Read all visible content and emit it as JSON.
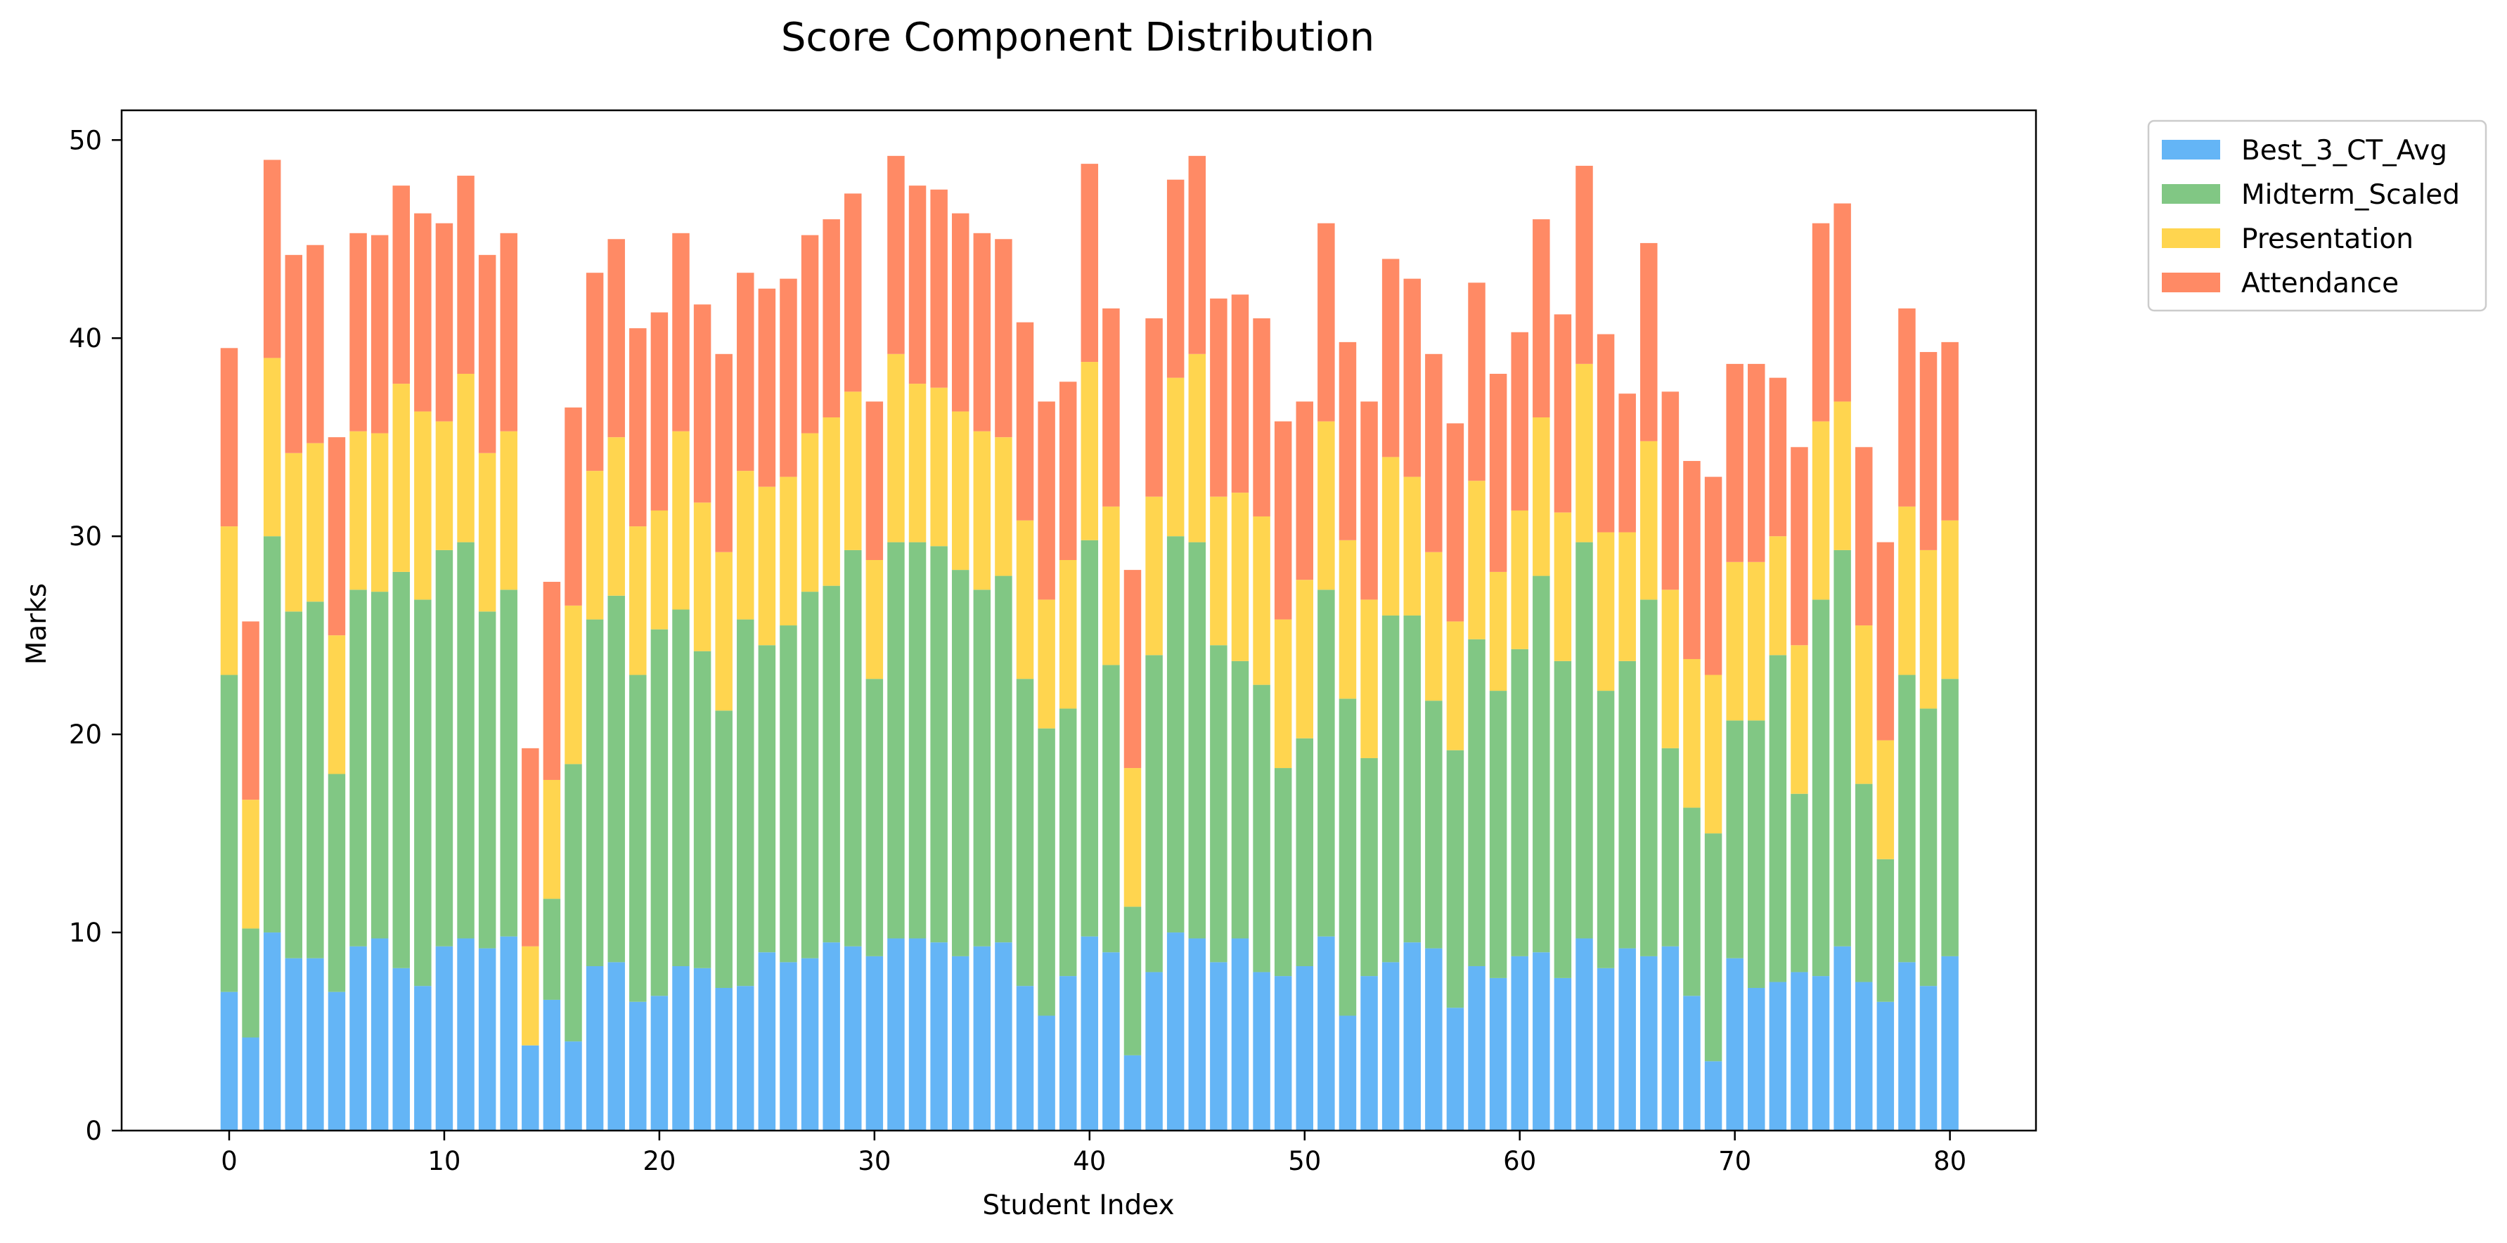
{
  "chart_data": {
    "type": "bar",
    "stacked": true,
    "title": "Score Component Distribution",
    "xlabel": "Student Index",
    "ylabel": "Marks",
    "xlim": [
      -5,
      84
    ],
    "ylim": [
      0,
      51.5
    ],
    "xticks": [
      0,
      10,
      20,
      30,
      40,
      50,
      60,
      70,
      80
    ],
    "yticks": [
      0,
      10,
      20,
      30,
      40,
      50
    ],
    "grid": false,
    "legend_position": "outside-top-right",
    "x": [
      0,
      1,
      2,
      3,
      4,
      5,
      6,
      7,
      8,
      9,
      10,
      11,
      12,
      13,
      14,
      15,
      16,
      17,
      18,
      19,
      20,
      21,
      22,
      23,
      24,
      25,
      26,
      27,
      28,
      29,
      30,
      31,
      32,
      33,
      34,
      35,
      36,
      37,
      38,
      39,
      40,
      41,
      42,
      43,
      44,
      45,
      46,
      47,
      48,
      49,
      50,
      51,
      52,
      53,
      54,
      55,
      56,
      57,
      58,
      59,
      60,
      61,
      62,
      63,
      64,
      65,
      66,
      67,
      68,
      69,
      70,
      71,
      72,
      73,
      74,
      75,
      76,
      77,
      78,
      79,
      80
    ],
    "series": [
      {
        "name": "Best_3_CT_Avg",
        "color": "#64B5F6",
        "values": [
          7.0,
          4.7,
          10.0,
          8.7,
          8.7,
          7.0,
          9.3,
          9.7,
          8.2,
          7.3,
          9.3,
          9.7,
          9.2,
          9.8,
          4.3,
          6.6,
          4.5,
          8.3,
          8.5,
          6.5,
          6.8,
          8.3,
          8.2,
          7.2,
          7.3,
          9.0,
          8.5,
          8.7,
          9.5,
          9.3,
          8.8,
          9.7,
          9.7,
          9.5,
          8.8,
          9.3,
          9.5,
          7.3,
          5.8,
          7.8,
          9.8,
          9.0,
          3.8,
          8.0,
          10.0,
          9.7,
          8.5,
          9.7,
          8.0,
          7.8,
          8.3,
          9.8,
          5.8,
          7.8,
          8.5,
          9.5,
          9.2,
          6.2,
          8.3,
          7.7,
          8.8,
          9.0,
          7.7,
          9.7,
          8.2,
          9.2,
          8.8,
          9.3,
          6.8,
          3.5,
          8.7,
          7.2,
          7.5,
          8.0,
          7.8,
          9.3,
          7.5,
          6.5,
          8.5,
          7.3,
          8.8
        ]
      },
      {
        "name": "Midterm_Scaled",
        "color": "#81C784",
        "values": [
          16.0,
          5.5,
          20.0,
          17.5,
          18.0,
          11.0,
          18.0,
          17.5,
          20.0,
          19.5,
          20.0,
          20.0,
          17.0,
          17.5,
          0.0,
          5.1,
          14.0,
          17.5,
          18.5,
          16.5,
          18.5,
          18.0,
          16.0,
          14.0,
          18.5,
          15.5,
          17.0,
          18.5,
          18.0,
          20.0,
          14.0,
          20.0,
          20.0,
          20.0,
          19.5,
          18.0,
          18.5,
          15.5,
          14.5,
          13.5,
          20.0,
          14.5,
          7.5,
          16.0,
          20.0,
          20.0,
          16.0,
          14.0,
          14.5,
          10.5,
          11.5,
          17.5,
          16.0,
          11.0,
          17.5,
          16.5,
          12.5,
          13.0,
          16.5,
          14.5,
          15.5,
          19.0,
          16.0,
          20.0,
          14.0,
          14.5,
          18.0,
          10.0,
          9.5,
          11.5,
          12.0,
          13.5,
          16.5,
          9.0,
          19.0,
          20.0,
          10.0,
          7.2,
          14.5,
          14.0,
          14.0
        ]
      },
      {
        "name": "Presentation",
        "color": "#FFD54F",
        "values": [
          7.5,
          6.5,
          9.0,
          8.0,
          8.0,
          7.0,
          8.0,
          8.0,
          9.5,
          9.5,
          6.5,
          8.5,
          8.0,
          8.0,
          5.0,
          6.0,
          8.0,
          7.5,
          8.0,
          7.5,
          6.0,
          9.0,
          7.5,
          8.0,
          7.5,
          8.0,
          7.5,
          8.0,
          8.5,
          8.0,
          6.0,
          9.5,
          8.0,
          8.0,
          8.0,
          8.0,
          7.0,
          8.0,
          6.5,
          7.5,
          9.0,
          8.0,
          7.0,
          8.0,
          8.0,
          9.5,
          7.5,
          8.5,
          8.5,
          7.5,
          8.0,
          8.5,
          8.0,
          8.0,
          8.0,
          7.0,
          7.5,
          6.5,
          8.0,
          6.0,
          7.0,
          8.0,
          7.5,
          9.0,
          8.0,
          6.5,
          8.0,
          8.0,
          7.5,
          8.0,
          8.0,
          8.0,
          6.0,
          7.5,
          9.0,
          7.5,
          8.0,
          6.0,
          8.5,
          8.0,
          8.0
        ]
      },
      {
        "name": "Attendance",
        "color": "#FF8A65",
        "values": [
          9.0,
          9.0,
          10.0,
          10.0,
          10.0,
          10.0,
          10.0,
          10.0,
          10.0,
          10.0,
          10.0,
          10.0,
          10.0,
          10.0,
          10.0,
          10.0,
          10.0,
          10.0,
          10.0,
          10.0,
          10.0,
          10.0,
          10.0,
          10.0,
          10.0,
          10.0,
          10.0,
          10.0,
          10.0,
          10.0,
          8.0,
          10.0,
          10.0,
          10.0,
          10.0,
          10.0,
          10.0,
          10.0,
          10.0,
          9.0,
          10.0,
          10.0,
          10.0,
          9.0,
          10.0,
          10.0,
          10.0,
          10.0,
          10.0,
          10.0,
          9.0,
          10.0,
          10.0,
          10.0,
          10.0,
          10.0,
          10.0,
          10.0,
          10.0,
          10.0,
          9.0,
          10.0,
          10.0,
          10.0,
          10.0,
          7.0,
          10.0,
          10.0,
          10.0,
          10.0,
          10.0,
          10.0,
          8.0,
          10.0,
          10.0,
          10.0,
          9.0,
          10.0,
          10.0,
          10.0,
          9.0
        ]
      }
    ]
  }
}
